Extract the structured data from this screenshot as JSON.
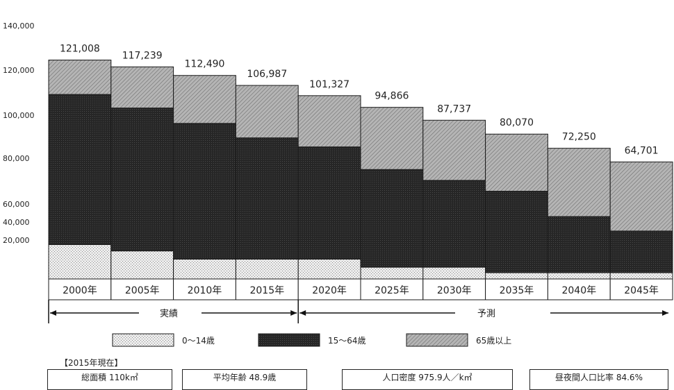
{
  "chart_data": {
    "type": "bar",
    "stacked": true,
    "categories": [
      "2000年",
      "2005年",
      "2010年",
      "2015年",
      "2020年",
      "2025年",
      "2030年",
      "2035年",
      "2040年",
      "2045年"
    ],
    "series": [
      {
        "name": "0〜14歳",
        "values": [
          19000,
          15500,
          11000,
          11000,
          11000,
          6500,
          6500,
          3500,
          3500,
          3500
        ]
      },
      {
        "name": "15〜64歳",
        "values": [
          83000,
          79000,
          75000,
          67000,
          62000,
          54000,
          48000,
          45000,
          31000,
          23000
        ]
      },
      {
        "name": "65歳以上",
        "values": [
          19008,
          22739,
          26490,
          28987,
          28327,
          34366,
          33237,
          31570,
          37750,
          38201
        ]
      }
    ],
    "totals": [
      "121,008",
      "117,239",
      "112,490",
      "106,987",
      "101,327",
      "94,866",
      "87,737",
      "80,070",
      "72,250",
      "64,701"
    ],
    "y_tick_labels": [
      "140,000",
      "120,000",
      "100,000",
      "80,000",
      "60,000",
      "40,000",
      "20,000"
    ],
    "ylim": [
      0,
      140000
    ],
    "periods": [
      {
        "label": "実績",
        "from": "2000年",
        "to": "2015年"
      },
      {
        "label": "予測",
        "from": "2020年",
        "to": "2045年"
      }
    ],
    "legend_position": "bottom",
    "colors": {
      "0〜14歳": "#d8d8d8",
      "15〜64歳": "#2a2a2a",
      "65歳以上": "#a9a9a9"
    }
  },
  "info": {
    "as_of": "【2015年現在】",
    "boxes": [
      "総面積 110k㎡",
      "平均年齢 48.9歳",
      "人口密度  975.9人／k㎡",
      "昼夜間人口比率 84.6%"
    ]
  }
}
